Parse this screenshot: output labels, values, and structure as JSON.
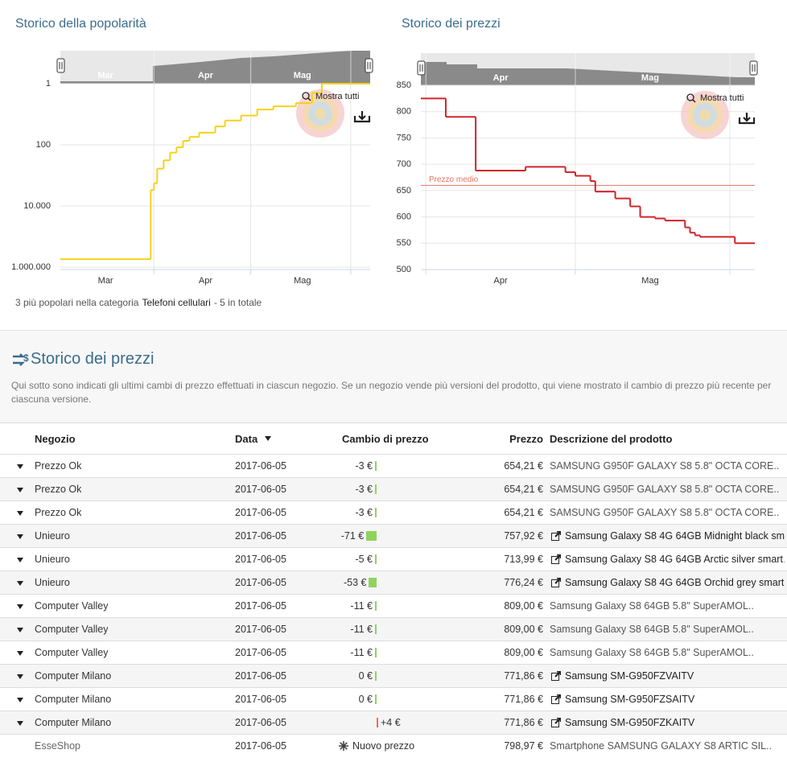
{
  "charts": [
    {
      "type": "line",
      "title": "Storico della popolarità",
      "step": true,
      "yscale": "log",
      "yreversed": true,
      "color": "#f5d21b",
      "x": [
        2,
        30,
        31,
        32,
        34,
        36,
        38,
        40,
        42,
        45,
        50,
        53,
        58,
        63,
        68,
        75,
        80,
        83,
        98
      ],
      "values": [
        550000,
        3000,
        1800,
        600,
        320,
        180,
        120,
        74,
        55,
        40,
        25,
        16,
        11,
        7,
        5.5,
        4.3,
        2,
        1,
        1
      ],
      "xlim": [
        2,
        98
      ],
      "ylim": [
        1,
        1000000
      ],
      "yticks": [
        1,
        100,
        {
          "value": 10000,
          "label": "10.000"
        },
        {
          "value": 1000000,
          "label": "1.000.000"
        }
      ],
      "xticks": [
        {
          "value": 16,
          "label": "Mar"
        },
        {
          "value": 47,
          "label": "Apr"
        },
        {
          "value": 77,
          "label": "Mag"
        }
      ],
      "xgrid": [
        31,
        61,
        92
      ],
      "button": "Mostra tutti"
    },
    {
      "type": "line",
      "title": "Storico dei prezzi",
      "step": true,
      "color": "#d0252a",
      "x": [
        30,
        35,
        41,
        51,
        59,
        61,
        64,
        65,
        69,
        72,
        74,
        77,
        79,
        83,
        84,
        85,
        86,
        93,
        97
      ],
      "values": [
        825,
        790,
        688,
        695,
        685,
        678,
        668,
        648,
        635,
        620,
        600,
        597,
        593,
        580,
        570,
        565,
        562,
        550,
        550
      ],
      "xlim": [
        30,
        97
      ],
      "ylim": [
        500,
        850
      ],
      "yticks": [
        500,
        550,
        600,
        650,
        700,
        750,
        800,
        850
      ],
      "xticks": [
        {
          "value": 46,
          "label": "Apr"
        },
        {
          "value": 76,
          "label": "Mag"
        }
      ],
      "xgrid": [
        31,
        61,
        92
      ],
      "button": "Mostra tutti",
      "average": {
        "label": "Prezzo medio",
        "value": 660,
        "color": "#e8735f"
      }
    }
  ],
  "footer": [
    "3 più popolari nella categoria",
    "Telefoni cellulari",
    "- 5 in totale"
  ],
  "section": {
    "title": "Storico dei prezzi",
    "description": "Qui sotto sono indicati gli ultimi cambi di prezzo effettuati in ciascun negozio. Se un negozio vende più versioni del prodotto, qui viene mostrato il cambio di prezzo più recente per ciascuna versione."
  },
  "table": {
    "columns": [
      "Negozio",
      "Data",
      "Cambio di prezzo",
      "Prezzo",
      "Descrizione del prodotto"
    ],
    "rows": [
      {
        "shop": "Prezzo Ok",
        "date": "2017-06-05",
        "change": {
          "value": -3,
          "label": "-3 €"
        },
        "price": "654,21 €",
        "description": "SAMSUNG G950F GALAXY S8 5.8\" OCTA CORE..",
        "link": false,
        "expandable": true
      },
      {
        "shop": "Prezzo Ok",
        "date": "2017-06-05",
        "change": {
          "value": -3,
          "label": "-3 €"
        },
        "price": "654,21 €",
        "description": "SAMSUNG G950F GALAXY S8 5.8\" OCTA CORE..",
        "link": false,
        "expandable": true
      },
      {
        "shop": "Prezzo Ok",
        "date": "2017-06-05",
        "change": {
          "value": -3,
          "label": "-3 €"
        },
        "price": "654,21 €",
        "description": "SAMSUNG G950F GALAXY S8 5.8\" OCTA CORE..",
        "link": false,
        "expandable": true
      },
      {
        "shop": "Unieuro",
        "date": "2017-06-05",
        "change": {
          "value": -71,
          "label": "-71 €"
        },
        "price": "757,92 €",
        "description": "Samsung Galaxy S8 4G 64GB Midnight black sm…",
        "link": true,
        "expandable": true
      },
      {
        "shop": "Unieuro",
        "date": "2017-06-05",
        "change": {
          "value": -5,
          "label": "-5 €"
        },
        "price": "713,99 €",
        "description": "Samsung Galaxy S8 4G 64GB Arctic silver smart…",
        "link": true,
        "expandable": true
      },
      {
        "shop": "Unieuro",
        "date": "2017-06-05",
        "change": {
          "value": -53,
          "label": "-53 €"
        },
        "price": "776,24 €",
        "description": "Samsung Galaxy S8 4G 64GB Orchid grey smart…",
        "link": true,
        "expandable": true
      },
      {
        "shop": "Computer Valley",
        "date": "2017-06-05",
        "change": {
          "value": -11,
          "label": "-11 €"
        },
        "price": "809,00 €",
        "description": "Samsung Galaxy S8 64GB 5.8\" SuperAMOL..",
        "link": false,
        "expandable": true
      },
      {
        "shop": "Computer Valley",
        "date": "2017-06-05",
        "change": {
          "value": -11,
          "label": "-11 €"
        },
        "price": "809,00 €",
        "description": "Samsung Galaxy S8 64GB 5.8\" SuperAMOL..",
        "link": false,
        "expandable": true
      },
      {
        "shop": "Computer Valley",
        "date": "2017-06-05",
        "change": {
          "value": -11,
          "label": "-11 €"
        },
        "price": "809,00 €",
        "description": "Samsung Galaxy S8 64GB 5.8\" SuperAMOL..",
        "link": false,
        "expandable": true
      },
      {
        "shop": "Computer Milano",
        "date": "2017-06-05",
        "change": {
          "value": 0,
          "label": "0 €"
        },
        "price": "771,86 €",
        "description": "Samsung SM-G950FZVAITV",
        "link": true,
        "expandable": true
      },
      {
        "shop": "Computer Milano",
        "date": "2017-06-05",
        "change": {
          "value": 0,
          "label": "0 €"
        },
        "price": "771,86 €",
        "description": "Samsung SM-G950FZSAITV",
        "link": true,
        "expandable": true
      },
      {
        "shop": "Computer Milano",
        "date": "2017-06-05",
        "change": {
          "value": 4,
          "label": "+4 €"
        },
        "price": "771,86 €",
        "description": "Samsung SM-G950FZKAITV",
        "link": true,
        "expandable": true
      },
      {
        "shop": "EsseShop",
        "date": "2017-06-05",
        "note": "Nuovo prezzo",
        "price": "798,97 €",
        "description": "Smartphone SAMSUNG GALAXY S8 ARTIC SIL..",
        "link": false,
        "expandable": false
      }
    ]
  }
}
